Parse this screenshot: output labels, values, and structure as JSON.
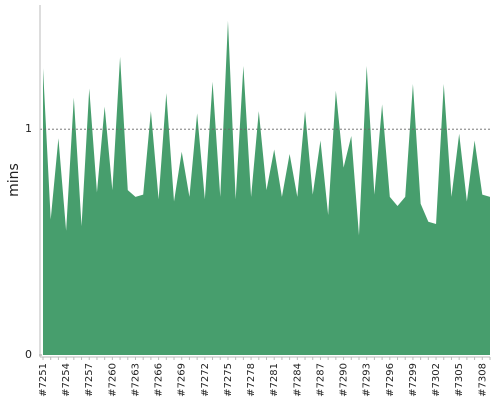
{
  "chart_data": {
    "type": "area",
    "ylabel": "mins",
    "color": "#479e6d",
    "categories": [
      "#7251",
      null,
      null,
      "#7254",
      null,
      null,
      "#7257",
      null,
      null,
      "#7260",
      null,
      null,
      "#7263",
      null,
      null,
      "#7266",
      null,
      null,
      "#7269",
      null,
      null,
      "#7272",
      null,
      null,
      "#7275",
      null,
      null,
      "#7278",
      null,
      null,
      "#7281",
      null,
      null,
      "#7284",
      null,
      null,
      "#7287",
      null,
      null,
      "#7290",
      null,
      null,
      "#7293",
      null,
      null,
      "#7296",
      null,
      null,
      "#7299",
      null,
      null,
      "#7302",
      null,
      null,
      "#7305",
      null,
      null,
      "#7308",
      null
    ],
    "values": [
      1.27,
      0.6,
      0.96,
      0.55,
      1.14,
      0.57,
      1.18,
      0.72,
      1.1,
      0.73,
      1.32,
      0.73,
      0.7,
      0.71,
      1.08,
      0.69,
      1.16,
      0.68,
      0.9,
      0.7,
      1.07,
      0.69,
      1.21,
      0.7,
      1.48,
      0.69,
      1.28,
      0.7,
      1.08,
      0.73,
      0.91,
      0.7,
      0.89,
      0.7,
      1.08,
      0.71,
      0.95,
      0.62,
      1.17,
      0.83,
      0.97,
      0.53,
      1.28,
      0.71,
      1.11,
      0.7,
      0.66,
      0.7,
      1.2,
      0.67,
      0.59,
      0.58,
      1.2,
      0.7,
      0.98,
      0.68,
      0.95,
      0.71,
      0.7
    ],
    "ylim": [
      0,
      1.55
    ],
    "yticks": [
      0,
      1
    ],
    "grid": true
  }
}
